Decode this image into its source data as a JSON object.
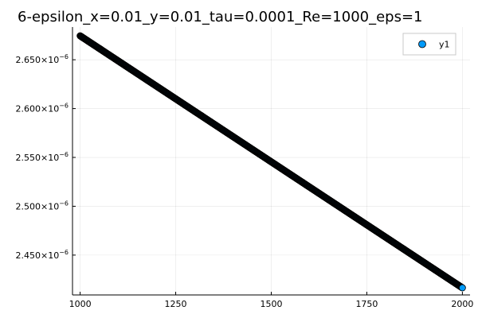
{
  "chart_data": {
    "type": "scatter",
    "title": "6-epsilon_x=0.01_y=0.01_tau=0.0001_Re=1000_eps=1",
    "xlabel": "",
    "ylabel": "",
    "xlim": [
      980,
      2020
    ],
    "ylim": [
      2.4092e-06,
      2.6835e-06
    ],
    "x_ticks": [
      1000,
      1250,
      1500,
      1750,
      2000
    ],
    "x_tick_labels": [
      "1000",
      "1250",
      "1500",
      "1750",
      "2000"
    ],
    "y_ticks": [
      2.45e-06,
      2.5e-06,
      2.55e-06,
      2.6e-06,
      2.65e-06
    ],
    "y_tick_mantissas": [
      "2.450",
      "2.500",
      "2.550",
      "2.600",
      "2.650"
    ],
    "y_tick_base": "×10",
    "y_tick_exponent": "−6",
    "grid": true,
    "legend_position": "top-right",
    "series": [
      {
        "name": "y1",
        "color": "#009af9",
        "edge_color": "#000000",
        "x_start": 1000,
        "x_end": 2000,
        "y_start": 2.6745e-06,
        "y_end": 2.4165e-06,
        "point_count": 1001
      }
    ]
  }
}
